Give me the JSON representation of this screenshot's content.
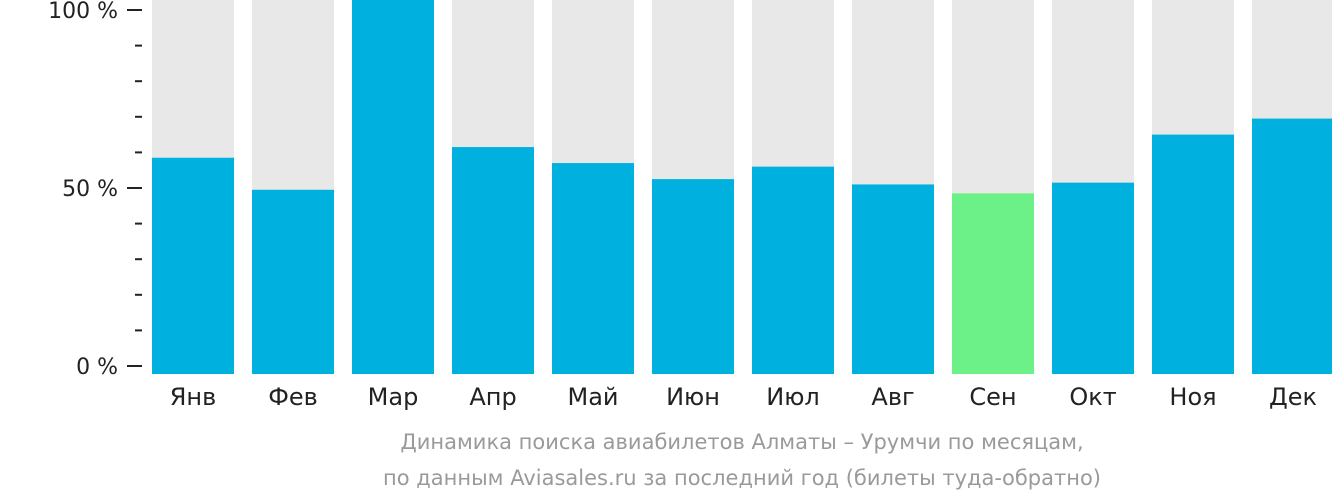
{
  "chart_data": {
    "type": "bar",
    "categories": [
      "Янв",
      "Фев",
      "Мар",
      "Апр",
      "Май",
      "Июн",
      "Июл",
      "Авг",
      "Сен",
      "Окт",
      "Ноя",
      "Дек"
    ],
    "values": [
      58.5,
      49.5,
      100,
      61.5,
      57,
      52.5,
      56,
      51,
      48.5,
      51.5,
      65,
      69.5
    ],
    "highlight_index": 8,
    "ylim": [
      0,
      100
    ],
    "y_ticks": [
      {
        "value": 0,
        "label": "0 %"
      },
      {
        "value": 50,
        "label": "50 %"
      },
      {
        "value": 100,
        "label": "100 %"
      }
    ],
    "minor_tick_step": 10,
    "grid": false,
    "colors": {
      "bar": "#00b0de",
      "highlight": "#6cf088",
      "background_bar": "#e8e8e8",
      "axis": "#222222"
    }
  },
  "caption": {
    "line1": "Динамика поиска авиабилетов Алматы – Урумчи по месяцам,",
    "line2": "по данным Aviasales.ru за последний год (билеты туда-обратно)"
  }
}
